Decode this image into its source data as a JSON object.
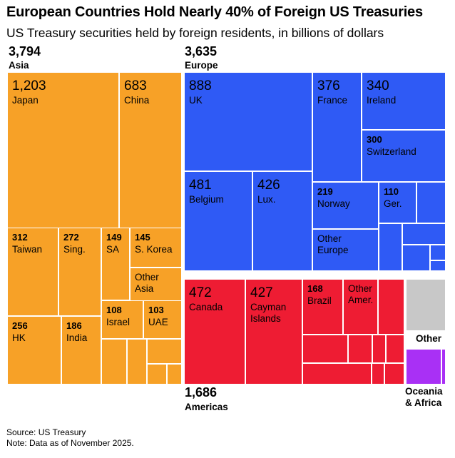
{
  "header": {
    "title": "European Countries Hold Nearly 40% of Foreign US Treasuries",
    "subtitle": "US Treasury securities held by foreign residents, in billions of dollars"
  },
  "groups": {
    "asia": {
      "total": "3,794",
      "name": "Asia"
    },
    "europe": {
      "total": "3,635",
      "name": "Europe"
    },
    "americas": {
      "total": "1,686",
      "name": "Americas"
    },
    "other": {
      "name": "Other"
    },
    "oceania_africa": {
      "line1": "Oceania",
      "line2": "& Africa"
    }
  },
  "chart_data": {
    "type": "treemap",
    "title": "European Countries Hold Nearly 40% of Foreign US Treasuries",
    "subtitle": "US Treasury securities held by foreign residents, in billions of dollars",
    "unit": "billions of dollars",
    "colors": {
      "asia": "#f7a127",
      "europe": "#2f5af5",
      "americas": "#ee1c33",
      "other": "#c8c8c8",
      "oceania_africa": "#a930f5"
    },
    "groups": [
      {
        "key": "asia",
        "name": "Asia",
        "total": 3794,
        "total_label": "3,794",
        "items": [
          {
            "label": "Japan",
            "value": 1203,
            "value_label": "1,203",
            "size": "large"
          },
          {
            "label": "China",
            "value": 683,
            "value_label": "683",
            "size": "large"
          },
          {
            "label": "Taiwan",
            "value": 312,
            "value_label": "312",
            "size": "small"
          },
          {
            "label": "Sing.",
            "value": 272,
            "value_label": "272",
            "size": "small"
          },
          {
            "label": "SA",
            "value": 149,
            "value_label": "149",
            "size": "small"
          },
          {
            "label": "S. Korea",
            "value": 145,
            "value_label": "145",
            "size": "small"
          },
          {
            "label": "Other Asia",
            "value": null,
            "value_label": "",
            "size": "small"
          },
          {
            "label": "HK",
            "value": 256,
            "value_label": "256",
            "size": "small"
          },
          {
            "label": "India",
            "value": 186,
            "value_label": "186",
            "size": "small"
          },
          {
            "label": "Israel",
            "value": 108,
            "value_label": "108",
            "size": "small"
          },
          {
            "label": "UAE",
            "value": 103,
            "value_label": "103",
            "size": "small"
          }
        ]
      },
      {
        "key": "europe",
        "name": "Europe",
        "total": 3635,
        "total_label": "3,635",
        "items": [
          {
            "label": "UK",
            "value": 888,
            "value_label": "888",
            "size": "large"
          },
          {
            "label": "France",
            "value": 376,
            "value_label": "376",
            "size": "large"
          },
          {
            "label": "Ireland",
            "value": 340,
            "value_label": "340",
            "size": "large"
          },
          {
            "label": "Switzerland",
            "value": 300,
            "value_label": "300",
            "size": "small"
          },
          {
            "label": "Belgium",
            "value": 481,
            "value_label": "481",
            "size": "large"
          },
          {
            "label": "Lux.",
            "value": 426,
            "value_label": "426",
            "size": "large"
          },
          {
            "label": "Norway",
            "value": 219,
            "value_label": "219",
            "size": "small"
          },
          {
            "label": "Ger.",
            "value": 110,
            "value_label": "110",
            "size": "small"
          },
          {
            "label": "Other Europe",
            "value": null,
            "value_label": "",
            "size": "small"
          }
        ]
      },
      {
        "key": "americas",
        "name": "Americas",
        "total": 1686,
        "total_label": "1,686",
        "items": [
          {
            "label": "Canada",
            "value": 472,
            "value_label": "472",
            "size": "large"
          },
          {
            "label": "Cayman Islands",
            "value": 427,
            "value_label": "427",
            "size": "large"
          },
          {
            "label": "Brazil",
            "value": 168,
            "value_label": "168",
            "size": "small"
          },
          {
            "label": "Other Amer.",
            "value": null,
            "value_label": "",
            "size": "small"
          }
        ]
      },
      {
        "key": "other",
        "name": "Other",
        "total": null,
        "total_label": "",
        "items": []
      },
      {
        "key": "oceania_africa",
        "name": "Oceania & Africa",
        "total": null,
        "total_label": "",
        "items": []
      }
    ]
  },
  "footer": {
    "source": "Source: US Treasury",
    "note": "Note: Data as of November 2025."
  }
}
